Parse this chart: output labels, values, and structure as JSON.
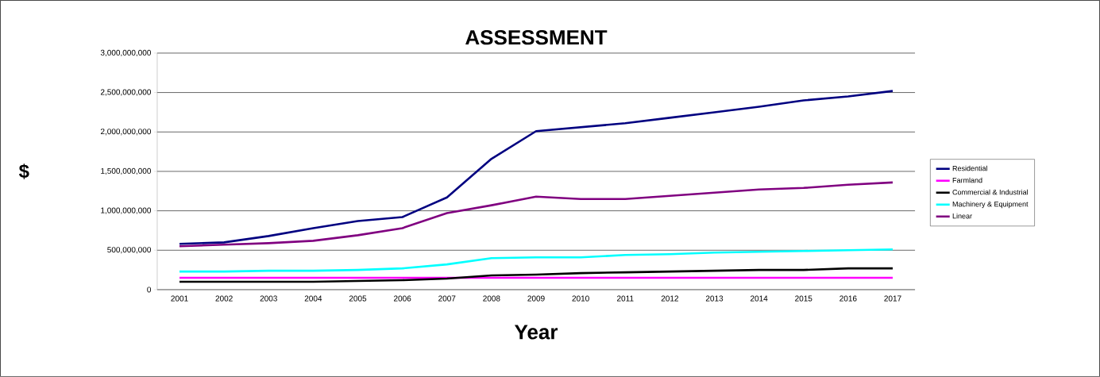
{
  "chart_data": {
    "type": "line",
    "title": "ASSESSMENT",
    "xlabel": "Year",
    "ylabel": "$",
    "categories": [
      "2001",
      "2002",
      "2003",
      "2004",
      "2005",
      "2006",
      "2007",
      "2008",
      "2009",
      "2010",
      "2011",
      "2012",
      "2013",
      "2014",
      "2015",
      "2016",
      "2017"
    ],
    "series": [
      {
        "name": "Residential",
        "color": "#000080",
        "values": [
          580000000,
          600000000,
          680000000,
          780000000,
          870000000,
          920000000,
          1170000000,
          1660000000,
          2010000000,
          2060000000,
          2110000000,
          2180000000,
          2250000000,
          2320000000,
          2400000000,
          2450000000,
          2520000000
        ]
      },
      {
        "name": "Farmland",
        "color": "#ff00ff",
        "values": [
          150000000,
          150000000,
          150000000,
          150000000,
          150000000,
          150000000,
          150000000,
          150000000,
          150000000,
          150000000,
          150000000,
          150000000,
          150000000,
          150000000,
          150000000,
          150000000,
          150000000
        ]
      },
      {
        "name": "Commercial & Industrial",
        "color": "#000000",
        "values": [
          100000000,
          100000000,
          100000000,
          100000000,
          110000000,
          120000000,
          140000000,
          180000000,
          190000000,
          210000000,
          220000000,
          230000000,
          240000000,
          250000000,
          250000000,
          270000000,
          270000000
        ]
      },
      {
        "name": "Machinery & Equipment",
        "color": "#00ffff",
        "values": [
          230000000,
          230000000,
          240000000,
          240000000,
          250000000,
          270000000,
          320000000,
          400000000,
          410000000,
          410000000,
          440000000,
          450000000,
          470000000,
          480000000,
          490000000,
          500000000,
          510000000
        ]
      },
      {
        "name": "Linear",
        "color": "#800080",
        "values": [
          550000000,
          570000000,
          590000000,
          620000000,
          690000000,
          780000000,
          970000000,
          1070000000,
          1180000000,
          1150000000,
          1150000000,
          1190000000,
          1230000000,
          1270000000,
          1290000000,
          1330000000,
          1360000000
        ]
      }
    ],
    "ylim": [
      0,
      3000000000
    ],
    "yticks": [
      {
        "value": 0,
        "label": "0"
      },
      {
        "value": 500000000,
        "label": "500,000,000"
      },
      {
        "value": 1000000000,
        "label": "1,000,000,000"
      },
      {
        "value": 1500000000,
        "label": "1,500,000,000"
      },
      {
        "value": 2000000000,
        "label": "2,000,000,000"
      },
      {
        "value": 2500000000,
        "label": "2,500,000,000"
      },
      {
        "value": 3000000000,
        "label": "3,000,000,000"
      }
    ],
    "grid": "y",
    "legend": "right",
    "marker": "none",
    "line_style": "solid"
  }
}
